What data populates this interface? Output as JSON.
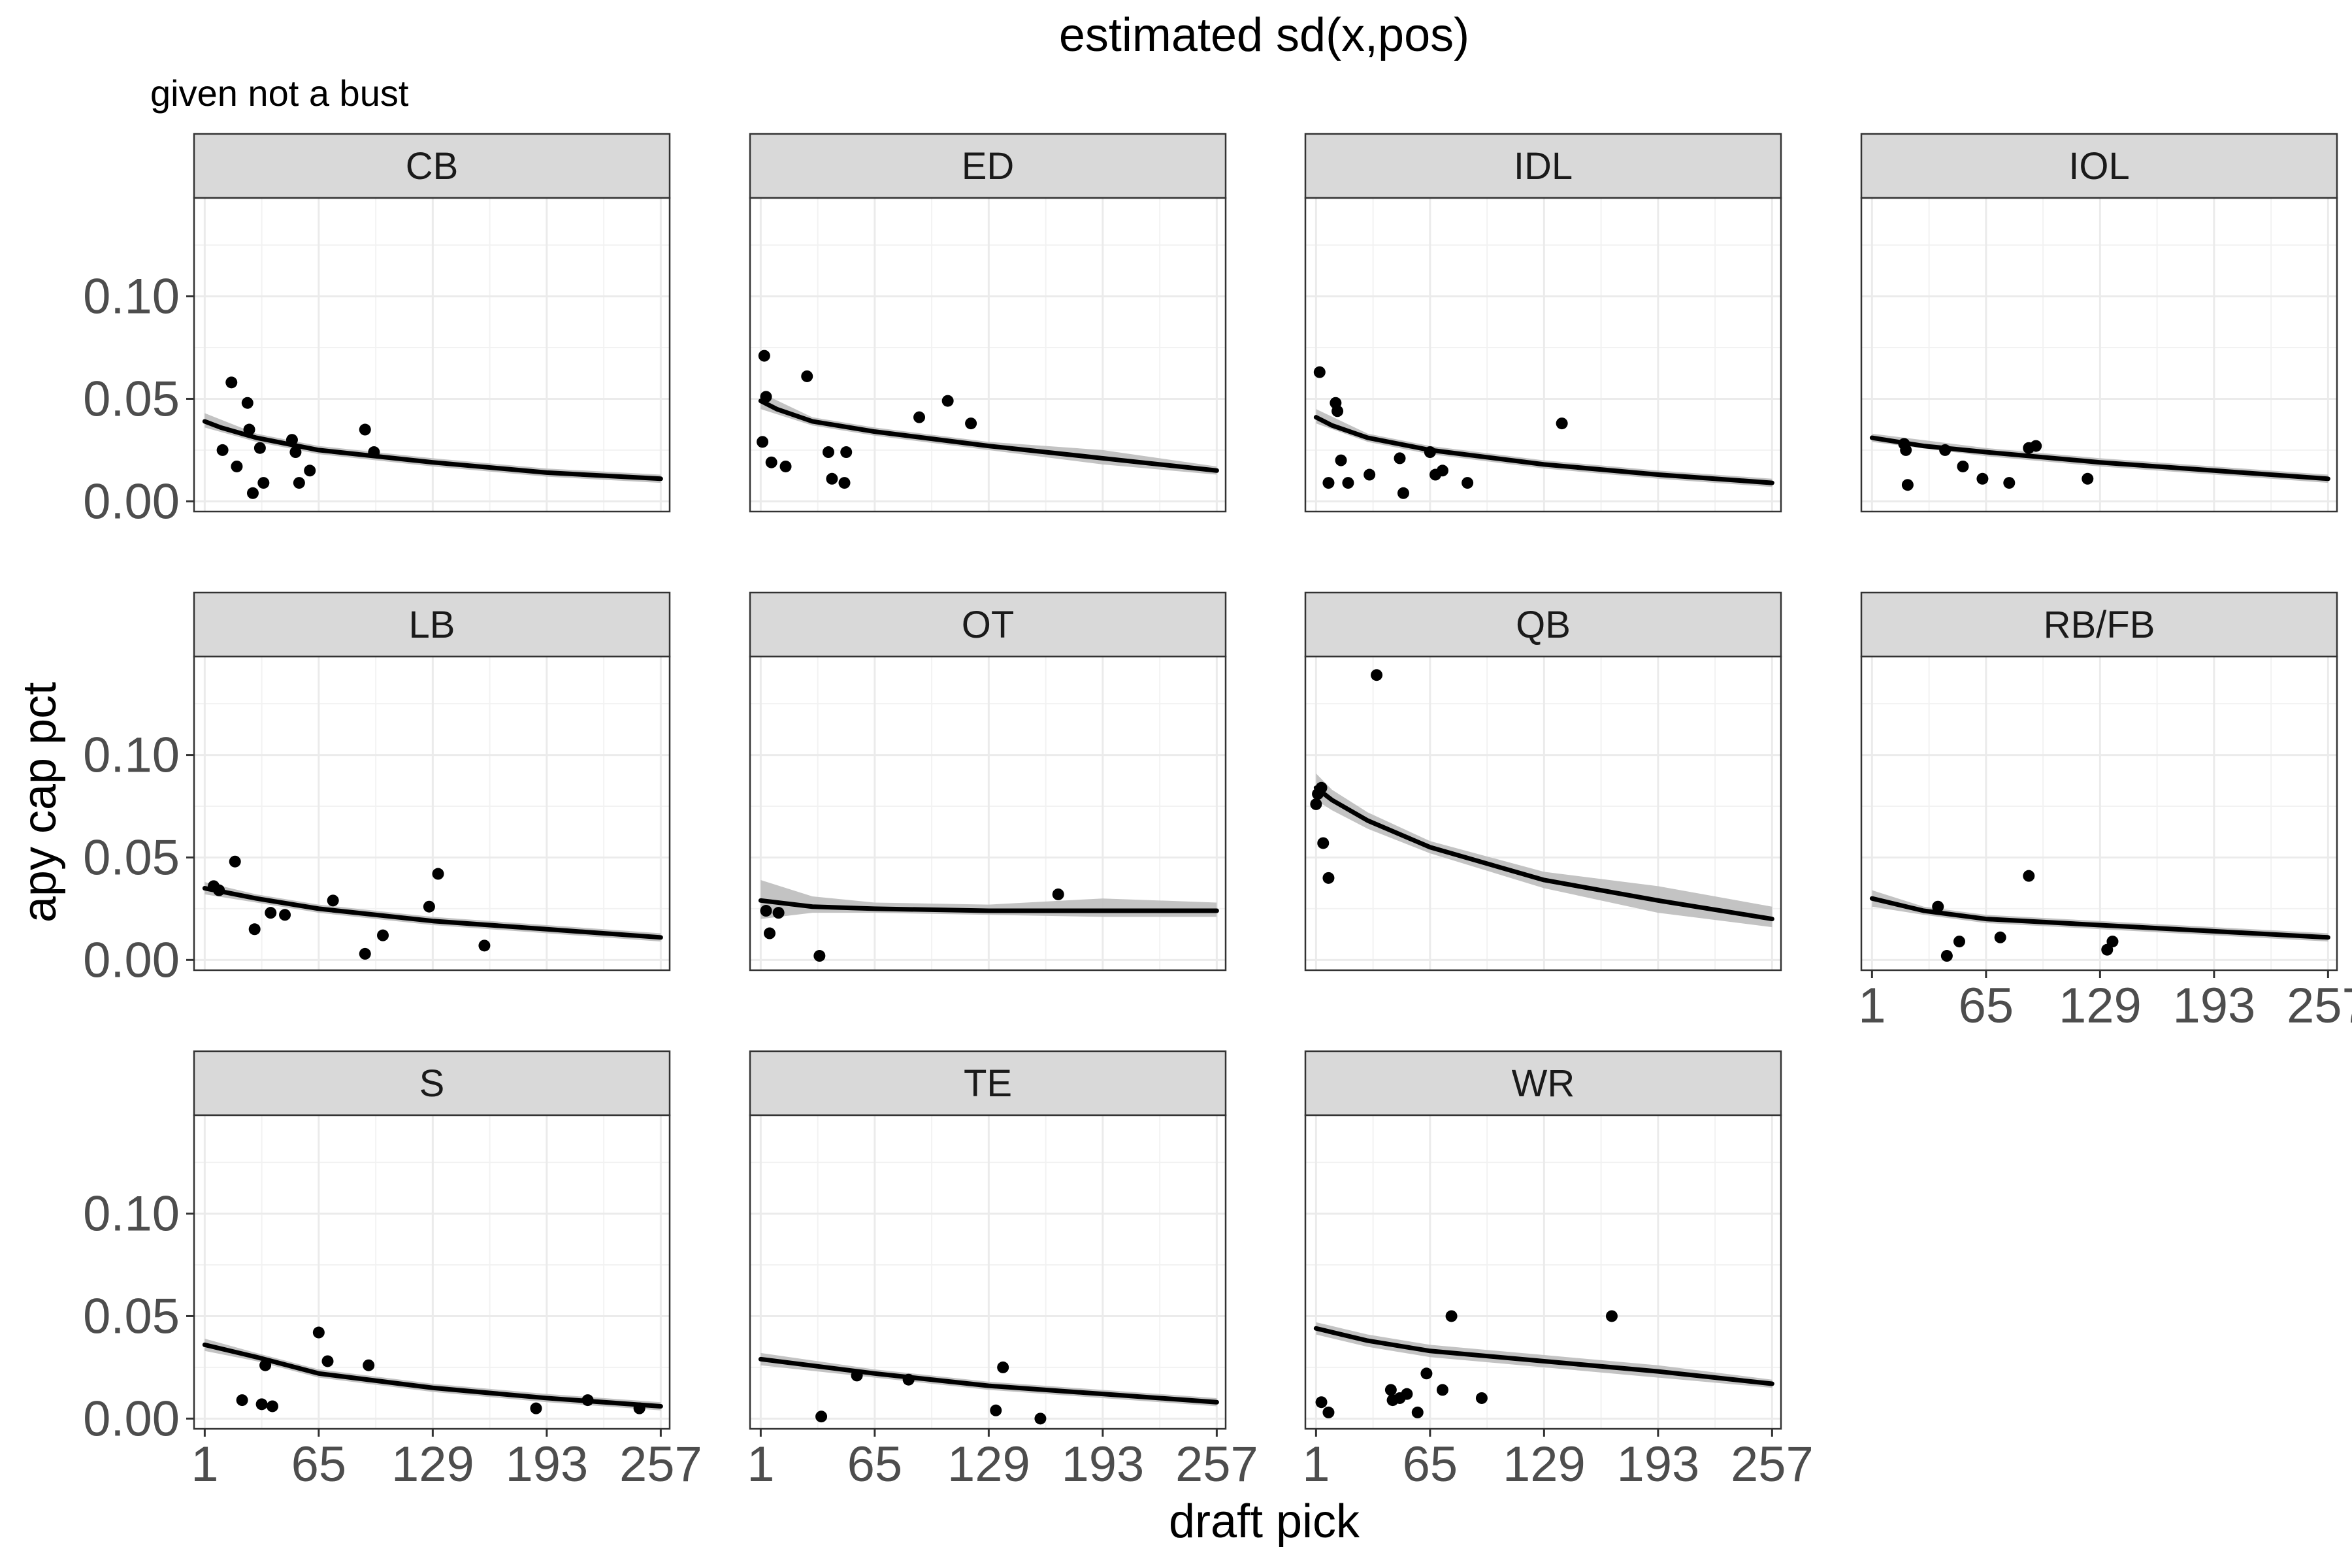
{
  "chart_data": {
    "type": "scatter",
    "title": "estimated sd(x,pos)",
    "subtitle": "given not a bust",
    "xlabel": "draft pick",
    "ylabel": "apy cap pct",
    "xlim": [
      -5,
      262
    ],
    "ylim": [
      -0.005,
      0.148
    ],
    "x_ticks": [
      1,
      65,
      129,
      193,
      257
    ],
    "x_tick_labels": [
      "1",
      "65",
      "129",
      "193",
      "257"
    ],
    "y_ticks": [
      0.0,
      0.05,
      0.1
    ],
    "y_tick_labels": [
      "0.00",
      "0.05",
      "0.10"
    ],
    "grid": true,
    "layout": {
      "columns": 4,
      "rows": 3
    },
    "panels": [
      {
        "name": "CB",
        "points": [
          [
            11,
            0.025
          ],
          [
            16,
            0.058
          ],
          [
            19,
            0.017
          ],
          [
            25,
            0.048
          ],
          [
            26,
            0.035
          ],
          [
            28,
            0.004
          ],
          [
            32,
            0.026
          ],
          [
            34,
            0.009
          ],
          [
            50,
            0.03
          ],
          [
            52,
            0.024
          ],
          [
            54,
            0.009
          ],
          [
            60,
            0.015
          ],
          [
            91,
            0.035
          ],
          [
            96,
            0.024
          ]
        ],
        "fit": [
          [
            1,
            0.039
          ],
          [
            10,
            0.036
          ],
          [
            30,
            0.031
          ],
          [
            65,
            0.025
          ],
          [
            129,
            0.019
          ],
          [
            193,
            0.014
          ],
          [
            257,
            0.011
          ]
        ],
        "band": [
          [
            1,
            0.036,
            0.043
          ],
          [
            30,
            0.029,
            0.033
          ],
          [
            65,
            0.023,
            0.027
          ],
          [
            129,
            0.017,
            0.021
          ],
          [
            193,
            0.012,
            0.016
          ],
          [
            257,
            0.009,
            0.013
          ]
        ]
      },
      {
        "name": "ED",
        "points": [
          [
            2,
            0.029
          ],
          [
            3,
            0.071
          ],
          [
            4,
            0.051
          ],
          [
            7,
            0.019
          ],
          [
            15,
            0.017
          ],
          [
            27,
            0.061
          ],
          [
            39,
            0.024
          ],
          [
            41,
            0.011
          ],
          [
            48,
            0.009
          ],
          [
            49,
            0.024
          ],
          [
            90,
            0.041
          ],
          [
            106,
            0.049
          ],
          [
            119,
            0.038
          ]
        ],
        "fit": [
          [
            1,
            0.049
          ],
          [
            10,
            0.045
          ],
          [
            30,
            0.039
          ],
          [
            65,
            0.034
          ],
          [
            129,
            0.027
          ],
          [
            193,
            0.021
          ],
          [
            257,
            0.015
          ]
        ],
        "band": [
          [
            1,
            0.045,
            0.053
          ],
          [
            30,
            0.037,
            0.041
          ],
          [
            65,
            0.032,
            0.036
          ],
          [
            129,
            0.025,
            0.029
          ],
          [
            193,
            0.018,
            0.025
          ],
          [
            257,
            0.013,
            0.017
          ]
        ]
      },
      {
        "name": "IDL",
        "points": [
          [
            3,
            0.063
          ],
          [
            8,
            0.009
          ],
          [
            12,
            0.048
          ],
          [
            13,
            0.044
          ],
          [
            15,
            0.02
          ],
          [
            19,
            0.009
          ],
          [
            31,
            0.013
          ],
          [
            48,
            0.021
          ],
          [
            50,
            0.004
          ],
          [
            65,
            0.024
          ],
          [
            68,
            0.013
          ],
          [
            72,
            0.015
          ],
          [
            86,
            0.009
          ],
          [
            139,
            0.038
          ]
        ],
        "fit": [
          [
            1,
            0.041
          ],
          [
            10,
            0.037
          ],
          [
            30,
            0.031
          ],
          [
            65,
            0.025
          ],
          [
            129,
            0.018
          ],
          [
            193,
            0.013
          ],
          [
            257,
            0.009
          ]
        ],
        "band": [
          [
            1,
            0.038,
            0.045
          ],
          [
            30,
            0.029,
            0.033
          ],
          [
            65,
            0.023,
            0.027
          ],
          [
            129,
            0.016,
            0.02
          ],
          [
            193,
            0.011,
            0.015
          ],
          [
            257,
            0.007,
            0.011
          ]
        ]
      },
      {
        "name": "IOL",
        "points": [
          [
            19,
            0.028
          ],
          [
            20,
            0.025
          ],
          [
            21,
            0.008
          ],
          [
            42,
            0.025
          ],
          [
            52,
            0.017
          ],
          [
            63,
            0.011
          ],
          [
            78,
            0.009
          ],
          [
            89,
            0.026
          ],
          [
            93,
            0.027
          ],
          [
            122,
            0.011
          ]
        ],
        "fit": [
          [
            1,
            0.031
          ],
          [
            30,
            0.027
          ],
          [
            65,
            0.024
          ],
          [
            129,
            0.019
          ],
          [
            193,
            0.015
          ],
          [
            257,
            0.011
          ]
        ],
        "band": [
          [
            1,
            0.029,
            0.033
          ],
          [
            65,
            0.022,
            0.026
          ],
          [
            129,
            0.017,
            0.021
          ],
          [
            193,
            0.013,
            0.017
          ],
          [
            257,
            0.009,
            0.013
          ]
        ]
      },
      {
        "name": "LB",
        "points": [
          [
            6,
            0.036
          ],
          [
            9,
            0.034
          ],
          [
            18,
            0.048
          ],
          [
            29,
            0.015
          ],
          [
            38,
            0.023
          ],
          [
            46,
            0.022
          ],
          [
            73,
            0.029
          ],
          [
            91,
            0.003
          ],
          [
            101,
            0.012
          ],
          [
            127,
            0.026
          ],
          [
            132,
            0.042
          ],
          [
            158,
            0.007
          ]
        ],
        "fit": [
          [
            1,
            0.035
          ],
          [
            30,
            0.03
          ],
          [
            65,
            0.025
          ],
          [
            129,
            0.019
          ],
          [
            193,
            0.015
          ],
          [
            257,
            0.011
          ]
        ],
        "band": [
          [
            1,
            0.032,
            0.038
          ],
          [
            30,
            0.028,
            0.032
          ],
          [
            65,
            0.023,
            0.027
          ],
          [
            129,
            0.017,
            0.021
          ],
          [
            193,
            0.013,
            0.017
          ],
          [
            257,
            0.009,
            0.013
          ]
        ]
      },
      {
        "name": "OT",
        "points": [
          [
            4,
            0.024
          ],
          [
            6,
            0.013
          ],
          [
            11,
            0.023
          ],
          [
            34,
            0.002
          ],
          [
            168,
            0.032
          ]
        ],
        "fit": [
          [
            1,
            0.029
          ],
          [
            30,
            0.026
          ],
          [
            65,
            0.025
          ],
          [
            129,
            0.024
          ],
          [
            193,
            0.024
          ],
          [
            257,
            0.024
          ]
        ],
        "band": [
          [
            1,
            0.02,
            0.039
          ],
          [
            30,
            0.023,
            0.031
          ],
          [
            65,
            0.023,
            0.028
          ],
          [
            129,
            0.022,
            0.027
          ],
          [
            193,
            0.021,
            0.03
          ],
          [
            257,
            0.021,
            0.028
          ]
        ]
      },
      {
        "name": "QB",
        "points": [
          [
            1,
            0.076
          ],
          [
            2,
            0.081
          ],
          [
            4,
            0.084
          ],
          [
            5,
            0.057
          ],
          [
            8,
            0.04
          ],
          [
            35,
            0.139
          ]
        ],
        "fit": [
          [
            1,
            0.084
          ],
          [
            10,
            0.078
          ],
          [
            30,
            0.068
          ],
          [
            65,
            0.055
          ],
          [
            129,
            0.039
          ],
          [
            193,
            0.029
          ],
          [
            257,
            0.02
          ]
        ],
        "band": [
          [
            1,
            0.078,
            0.091
          ],
          [
            10,
            0.073,
            0.083
          ],
          [
            30,
            0.064,
            0.072
          ],
          [
            65,
            0.052,
            0.058
          ],
          [
            129,
            0.035,
            0.043
          ],
          [
            193,
            0.023,
            0.036
          ],
          [
            257,
            0.016,
            0.026
          ]
        ]
      },
      {
        "name": "RB/FB",
        "points": [
          [
            38,
            0.026
          ],
          [
            43,
            0.002
          ],
          [
            50,
            0.009
          ],
          [
            73,
            0.011
          ],
          [
            89,
            0.041
          ],
          [
            133,
            0.005
          ],
          [
            136,
            0.009
          ]
        ],
        "fit": [
          [
            1,
            0.03
          ],
          [
            30,
            0.024
          ],
          [
            65,
            0.02
          ],
          [
            129,
            0.017
          ],
          [
            193,
            0.014
          ],
          [
            257,
            0.011
          ]
        ],
        "band": [
          [
            1,
            0.026,
            0.034
          ],
          [
            30,
            0.022,
            0.026
          ],
          [
            65,
            0.018,
            0.022
          ],
          [
            129,
            0.015,
            0.019
          ],
          [
            193,
            0.012,
            0.016
          ],
          [
            257,
            0.009,
            0.013
          ]
        ]
      },
      {
        "name": "S",
        "points": [
          [
            22,
            0.009
          ],
          [
            33,
            0.007
          ],
          [
            35,
            0.026
          ],
          [
            39,
            0.006
          ],
          [
            65,
            0.042
          ],
          [
            70,
            0.028
          ],
          [
            93,
            0.026
          ],
          [
            187,
            0.005
          ],
          [
            216,
            0.009
          ],
          [
            245,
            0.005
          ]
        ],
        "fit": [
          [
            1,
            0.036
          ],
          [
            30,
            0.03
          ],
          [
            65,
            0.022
          ],
          [
            129,
            0.015
          ],
          [
            193,
            0.01
          ],
          [
            257,
            0.006
          ]
        ],
        "band": [
          [
            1,
            0.033,
            0.039
          ],
          [
            30,
            0.028,
            0.032
          ],
          [
            65,
            0.02,
            0.024
          ],
          [
            129,
            0.013,
            0.017
          ],
          [
            193,
            0.008,
            0.012
          ],
          [
            257,
            0.004,
            0.008
          ]
        ]
      },
      {
        "name": "TE",
        "points": [
          [
            35,
            0.001
          ],
          [
            55,
            0.021
          ],
          [
            84,
            0.019
          ],
          [
            133,
            0.004
          ],
          [
            137,
            0.025
          ],
          [
            158,
            0.0
          ]
        ],
        "fit": [
          [
            1,
            0.029
          ],
          [
            65,
            0.022
          ],
          [
            129,
            0.016
          ],
          [
            193,
            0.012
          ],
          [
            257,
            0.008
          ]
        ],
        "band": [
          [
            1,
            0.026,
            0.032
          ],
          [
            65,
            0.02,
            0.024
          ],
          [
            129,
            0.014,
            0.018
          ],
          [
            193,
            0.01,
            0.014
          ],
          [
            257,
            0.006,
            0.01
          ]
        ]
      },
      {
        "name": "WR",
        "points": [
          [
            4,
            0.008
          ],
          [
            8,
            0.003
          ],
          [
            43,
            0.014
          ],
          [
            44,
            0.009
          ],
          [
            48,
            0.01
          ],
          [
            52,
            0.012
          ],
          [
            58,
            0.003
          ],
          [
            63,
            0.022
          ],
          [
            72,
            0.014
          ],
          [
            77,
            0.05
          ],
          [
            94,
            0.01
          ],
          [
            167,
            0.05
          ]
        ],
        "fit": [
          [
            1,
            0.044
          ],
          [
            30,
            0.038
          ],
          [
            65,
            0.033
          ],
          [
            129,
            0.028
          ],
          [
            193,
            0.023
          ],
          [
            257,
            0.017
          ]
        ],
        "band": [
          [
            1,
            0.041,
            0.047
          ],
          [
            30,
            0.035,
            0.041
          ],
          [
            65,
            0.03,
            0.036
          ],
          [
            129,
            0.025,
            0.031
          ],
          [
            193,
            0.02,
            0.026
          ],
          [
            257,
            0.015,
            0.019
          ]
        ]
      }
    ]
  }
}
